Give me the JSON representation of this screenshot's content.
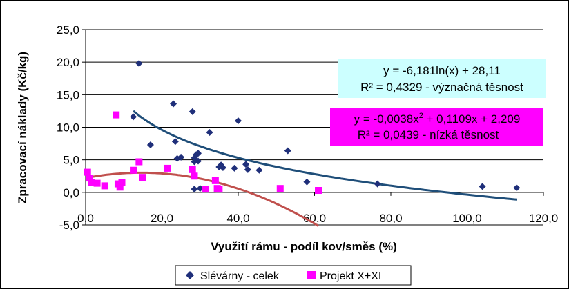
{
  "chart_data": {
    "type": "scatter",
    "xlabel": "Využití rámu - podíl kov/směs (%)",
    "ylabel": "Zpracovací náklady (Kč/kg)",
    "xlim": [
      0,
      120
    ],
    "ylim": [
      -5,
      25
    ],
    "x_ticks": [
      "0,0",
      "20,0",
      "40,0",
      "60,0",
      "80,0",
      "100,0",
      "120,0"
    ],
    "y_ticks": [
      "25,0",
      "20,0",
      "15,0",
      "10,0",
      "5,0",
      "0,0",
      "-5,0"
    ],
    "grid": "horizontal",
    "legend_position": "bottom",
    "series": [
      {
        "name": "Slévárny - celek",
        "color": "#1f2f7a",
        "marker": "diamond",
        "points": [
          [
            14.0,
            19.8
          ],
          [
            12.5,
            11.6
          ],
          [
            17.0,
            7.3
          ],
          [
            23.0,
            13.6
          ],
          [
            23.5,
            7.8
          ],
          [
            24.0,
            5.2
          ],
          [
            25.0,
            5.4
          ],
          [
            28.0,
            12.4
          ],
          [
            28.5,
            5.3
          ],
          [
            28.5,
            4.7
          ],
          [
            28.5,
            0.5
          ],
          [
            29.0,
            5.8
          ],
          [
            29.5,
            6.0
          ],
          [
            29.5,
            4.8
          ],
          [
            30.0,
            0.6
          ],
          [
            32.5,
            9.2
          ],
          [
            35.0,
            3.9
          ],
          [
            35.5,
            4.2
          ],
          [
            36.0,
            3.8
          ],
          [
            39.0,
            3.7
          ],
          [
            40.0,
            11.0
          ],
          [
            42.0,
            4.3
          ],
          [
            42.5,
            3.5
          ],
          [
            45.5,
            3.4
          ],
          [
            53.0,
            6.4
          ],
          [
            58.0,
            1.6
          ],
          [
            76.5,
            1.3
          ],
          [
            104.0,
            0.9
          ],
          [
            113.0,
            0.7
          ]
        ]
      },
      {
        "name": "Projekt X+XI",
        "color": "#ff00ff",
        "marker": "square",
        "points": [
          [
            0.5,
            3.1
          ],
          [
            1.0,
            2.2
          ],
          [
            1.5,
            1.5
          ],
          [
            3.0,
            1.4
          ],
          [
            5.0,
            1.0
          ],
          [
            8.0,
            11.9
          ],
          [
            8.5,
            1.3
          ],
          [
            9.0,
            0.8
          ],
          [
            9.5,
            1.5
          ],
          [
            12.5,
            3.4
          ],
          [
            14.0,
            4.7
          ],
          [
            15.0,
            2.3
          ],
          [
            21.5,
            3.7
          ],
          [
            28.0,
            3.5
          ],
          [
            28.5,
            2.5
          ],
          [
            31.5,
            0.5
          ],
          [
            34.0,
            1.8
          ],
          [
            34.5,
            0.6
          ],
          [
            35.0,
            0.5
          ],
          [
            51.0,
            0.6
          ],
          [
            61.0,
            0.3
          ]
        ]
      }
    ],
    "trendlines": [
      {
        "series": "Slévárny - celek",
        "kind": "log",
        "a": -6.181,
        "b": 28.11,
        "x_range": [
          12.5,
          113.0
        ],
        "color": "#1f4e79",
        "equation": "y = -6,181ln(x) + 28,11",
        "r2": "R² = 0,4329 - význačná těsnost",
        "box_color": "#ccffff"
      },
      {
        "series": "Projekt X+XI",
        "kind": "poly2",
        "c2": -0.0038,
        "c1": 0.1109,
        "c0": 2.209,
        "x_range": [
          0.5,
          61.0
        ],
        "color": "#c0504d",
        "equation_prefix": "y = -0,0038x",
        "equation_sup": "2",
        "equation_suffix": " + 0,1109x + 2,209",
        "r2": "R² = 0,0439 - nízká těsnost",
        "box_color": "#ff00ff"
      }
    ]
  }
}
